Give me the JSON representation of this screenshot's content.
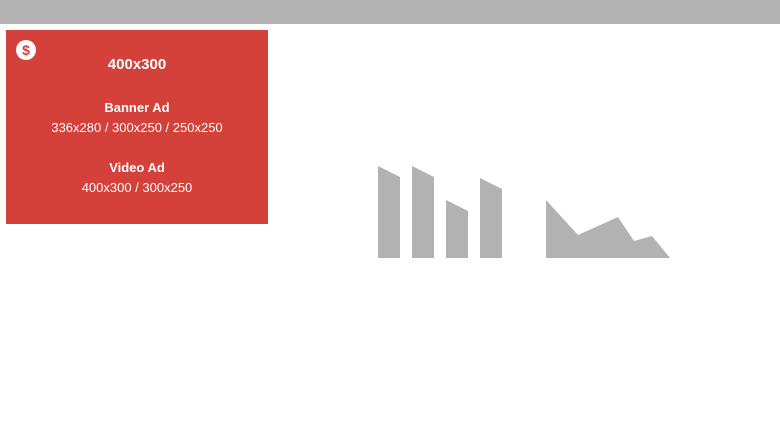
{
  "ad_slot": {
    "size": "400x300",
    "icon": "dollar-icon",
    "accent_color": "#d4403a",
    "banner": {
      "title": "Banner Ad",
      "sizes": "336x280 / 300x250 / 250x250"
    },
    "video": {
      "title": "Video Ad",
      "sizes": "400x300 / 300x250"
    }
  },
  "placeholder": {
    "icon": "chart-placeholder-icon",
    "color": "#b2b2b2"
  }
}
